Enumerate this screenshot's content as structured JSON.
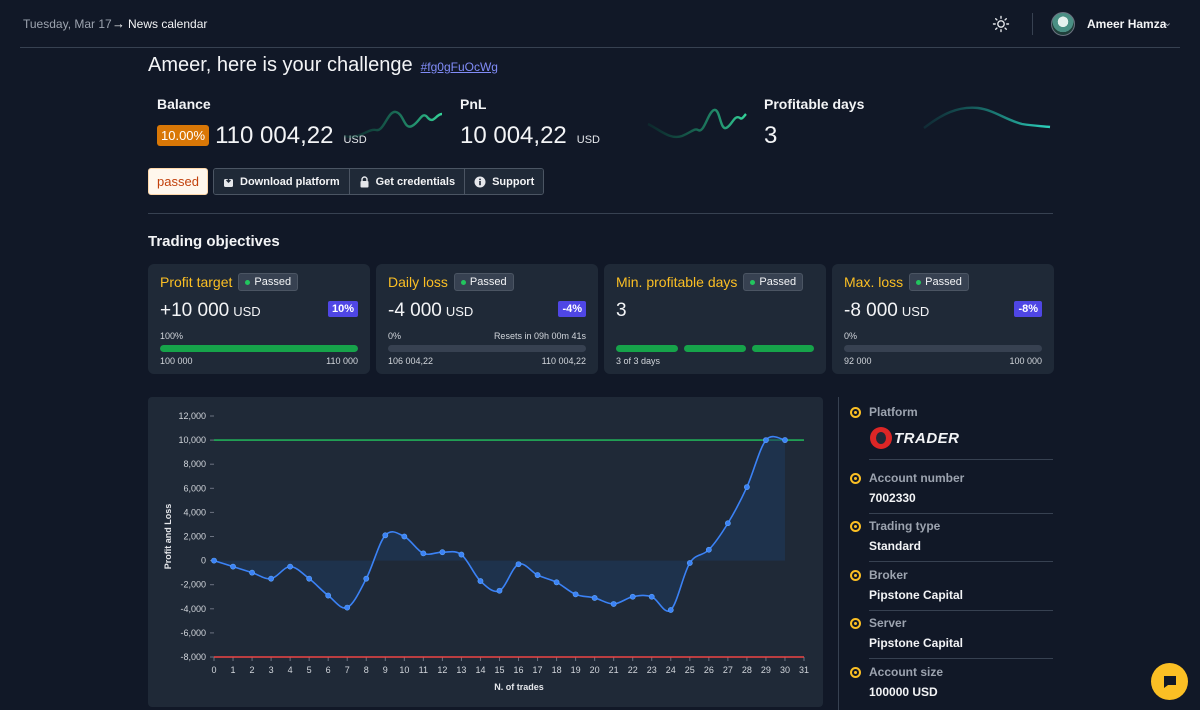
{
  "topbar": {
    "date": "Tuesday, Mar 17",
    "news_arrow": "→",
    "news_label": "News calendar",
    "user_name": "Ameer Hamza"
  },
  "heading": {
    "title": "Ameer, here is your challenge",
    "challenge_id": "#fg0gFuOcWg"
  },
  "stats": {
    "balance": {
      "label": "Balance",
      "badge": "10.00%",
      "value": "110 004,22",
      "currency": "USD"
    },
    "pnl": {
      "label": "PnL",
      "value": "10 004,22",
      "currency": "USD"
    },
    "profitable_days": {
      "label": "Profitable days",
      "value": "3"
    }
  },
  "actions": {
    "status": "passed",
    "download": "Download platform",
    "credentials": "Get credentials",
    "support": "Support"
  },
  "objectives": {
    "title": "Trading objectives",
    "cards": [
      {
        "title": "Profit target",
        "status": "Passed",
        "value": "+10 000",
        "unit": "USD",
        "pct": "10%",
        "left_label": "100%",
        "right_label": "",
        "progress": 100,
        "start": "100 000",
        "end": "110 000"
      },
      {
        "title": "Daily loss",
        "status": "Passed",
        "value": "-4 000",
        "unit": "USD",
        "pct": "-4%",
        "left_label": "0%",
        "right_label": "Resets in 09h 00m 41s",
        "progress": 0,
        "start": "106 004,22",
        "end": "110 004,22"
      },
      {
        "title": "Min. profitable days",
        "status": "Passed",
        "value": "3",
        "unit": "",
        "pct": "",
        "left_label": "",
        "right_label": "",
        "progress": 100,
        "start": "3 of 3 days",
        "end": ""
      },
      {
        "title": "Max. loss",
        "status": "Passed",
        "value": "-8 000",
        "unit": "USD",
        "pct": "-8%",
        "left_label": "0%",
        "right_label": "",
        "progress": 0,
        "start": "92 000",
        "end": "100 000"
      }
    ]
  },
  "chart_data": {
    "type": "line",
    "title": "",
    "xlabel": "N. of trades",
    "ylabel": "Profit and Loss",
    "x": [
      0,
      1,
      2,
      3,
      4,
      5,
      6,
      7,
      8,
      9,
      10,
      11,
      12,
      13,
      14,
      15,
      16,
      17,
      18,
      19,
      20,
      21,
      22,
      23,
      24,
      25,
      26,
      27,
      28,
      29,
      30
    ],
    "values": [
      0,
      -500,
      -1000,
      -1500,
      -500,
      -1500,
      -2900,
      -3900,
      -1500,
      2100,
      2000,
      600,
      700,
      500,
      -1700,
      -2500,
      -300,
      -1200,
      -1800,
      -2800,
      -3100,
      -3600,
      -3000,
      -3000,
      -4100,
      -200,
      900,
      3100,
      6100,
      10000,
      10004
    ],
    "ylim": [
      -8000,
      12000
    ],
    "yticks": [
      "12,000",
      "10,000",
      "8,000",
      "6,000",
      "4,000",
      "2,000",
      "0",
      "-2,000",
      "-4,000",
      "-6,000",
      "-8,000"
    ],
    "xlim": [
      0,
      31
    ],
    "xticks": [
      "0",
      "1",
      "2",
      "3",
      "4",
      "5",
      "6",
      "7",
      "8",
      "9",
      "10",
      "11",
      "12",
      "13",
      "14",
      "15",
      "16",
      "17",
      "18",
      "19",
      "20",
      "21",
      "22",
      "23",
      "24",
      "25",
      "26",
      "27",
      "28",
      "29",
      "30",
      "31"
    ],
    "target_line": 10000,
    "loss_line": -8000,
    "colors": {
      "line": "#3b82f6",
      "target": "#22c55e",
      "loss": "#ef4444",
      "area": "#1e3a5f"
    }
  },
  "info": {
    "platform_label": "Platform",
    "platform_logo": "TRADER",
    "account_number_label": "Account number",
    "account_number": "7002330",
    "trading_type_label": "Trading type",
    "trading_type": "Standard",
    "broker_label": "Broker",
    "broker": "Pipstone Capital",
    "server_label": "Server",
    "server": "Pipstone Capital",
    "account_size_label": "Account size",
    "account_size": "100000 USD"
  }
}
